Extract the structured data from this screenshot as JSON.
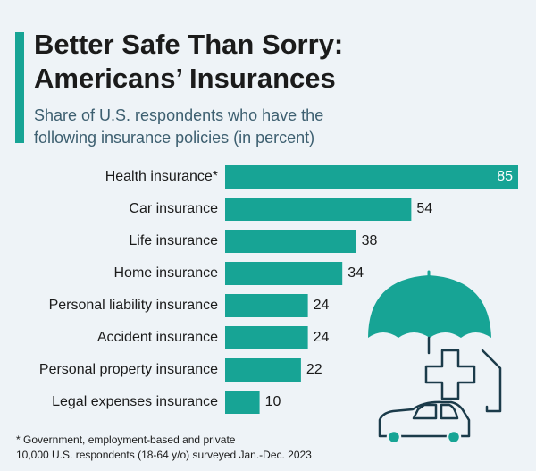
{
  "chart_data": {
    "type": "bar",
    "orientation": "horizontal",
    "title": [
      "Better Safe Than Sorry:",
      "Americans’ Insurances"
    ],
    "subtitle": [
      "Share of U.S. respondents who have the",
      "following insurance policies (in percent)"
    ],
    "categories": [
      "Health insurance*",
      "Car insurance",
      "Life insurance",
      "Home insurance",
      "Personal liability insurance",
      "Accident insurance",
      "Personal property insurance",
      "Legal expenses insurance"
    ],
    "values": [
      85,
      54,
      38,
      34,
      24,
      24,
      22,
      10
    ],
    "color": "#17a495",
    "footnote": [
      "* Government, employment-based and private",
      "10,000 U.S. respondents (18-64 y/o) surveyed Jan.-Dec. 2023"
    ]
  }
}
